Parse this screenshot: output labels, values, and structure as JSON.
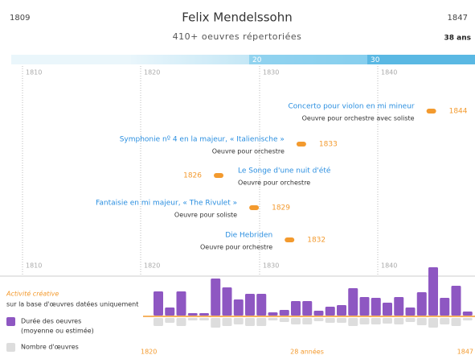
{
  "header": {
    "start_year": "1809",
    "title": "Felix Mendelssohn",
    "end_year": "1847",
    "subtitle": "410+ oeuvres répertoriées",
    "age": "38 ans"
  },
  "age_band": {
    "ticks": [
      "20",
      "30"
    ]
  },
  "decades": {
    "top": [
      "1810",
      "1820",
      "1830",
      "1840"
    ],
    "bottom": [
      "1810",
      "1820",
      "1830",
      "1840"
    ]
  },
  "works": [
    {
      "title": "Concerto pour violon en mi mineur",
      "type": "Oeuvre pour orchestre avec soliste",
      "year": 1844
    },
    {
      "title": "Symphonie nº 4 en la majeur, « Italienische »",
      "type": "Oeuvre pour orchestre",
      "year": 1833
    },
    {
      "title": "Le Songe d'une nuit d'été",
      "type": "Oeuvre pour orchestre",
      "year": 1826
    },
    {
      "title": "Fantaisie en mi majeur, « The Rivulet »",
      "type": "Oeuvre pour soliste",
      "year": 1829
    },
    {
      "title": "Die Hebriden",
      "type": "Oeuvre pour orchestre",
      "year": 1832
    }
  ],
  "activity": {
    "title": "Activité créative",
    "subtitle": "sur la base d'œuvres datées uniquement",
    "duration_label": "Durée des oeuvres",
    "duration_note": "(moyenne ou estimée)",
    "count_label": "Nombre d'œuvres",
    "start": "1820",
    "span": "28 années",
    "end": "1847",
    "durations": [
      30,
      10,
      30,
      3,
      3,
      46,
      35,
      20,
      27,
      27,
      4,
      7,
      18,
      18,
      6,
      11,
      13,
      34,
      23,
      22,
      16,
      23,
      10,
      29,
      60,
      22,
      37,
      5
    ],
    "counts": [
      10,
      6,
      10,
      3,
      3,
      12,
      10,
      8,
      10,
      10,
      3,
      5,
      8,
      8,
      4,
      6,
      6,
      10,
      8,
      8,
      7,
      8,
      5,
      9,
      12,
      8,
      10,
      3
    ]
  }
}
